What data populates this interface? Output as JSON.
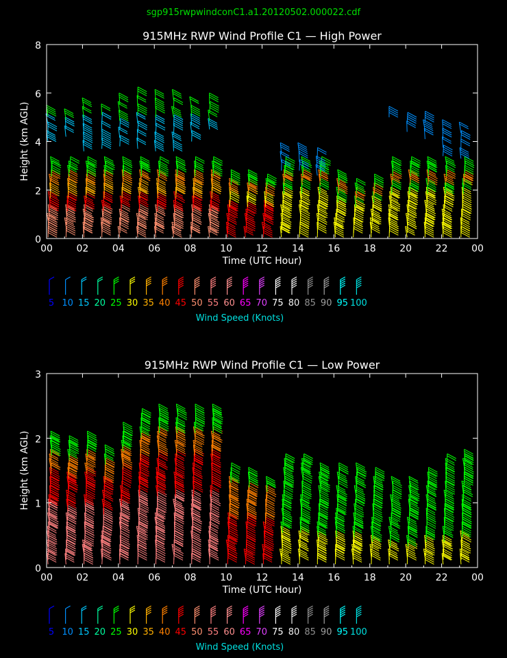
{
  "filename": "sgp915rwpwindconC1.a1.20120502.000022.cdf",
  "colors": {
    "background": "#000000",
    "axis": "#ffffff",
    "filename": "#00e000",
    "legend_title": "#00e0e0"
  },
  "legend": {
    "title": "Wind Speed (Knots)",
    "entries": [
      {
        "label": "5",
        "color": "#0000ff"
      },
      {
        "label": "10",
        "color": "#0090ff"
      },
      {
        "label": "15",
        "color": "#00c8ff"
      },
      {
        "label": "20",
        "color": "#00ffa0"
      },
      {
        "label": "25",
        "color": "#00ff00"
      },
      {
        "label": "30",
        "color": "#ffff00"
      },
      {
        "label": "35",
        "color": "#ffb000"
      },
      {
        "label": "40",
        "color": "#ff8000"
      },
      {
        "label": "45",
        "color": "#ff0000"
      },
      {
        "label": "50",
        "color": "#ff9070"
      },
      {
        "label": "55",
        "color": "#ff8080"
      },
      {
        "label": "60",
        "color": "#ff9090"
      },
      {
        "label": "65",
        "color": "#ff00ff"
      },
      {
        "label": "70",
        "color": "#e040ff"
      },
      {
        "label": "75",
        "color": "#ffffff"
      },
      {
        "label": "80",
        "color": "#f0f0f0"
      },
      {
        "label": "85",
        "color": "#909090"
      },
      {
        "label": "90",
        "color": "#a0a0a0"
      },
      {
        "label": "95",
        "color": "#00ffff"
      },
      {
        "label": "100",
        "color": "#00e0e0"
      }
    ]
  },
  "chart_data": [
    {
      "type": "scatter",
      "title": "915MHz RWP Wind Profile C1 — High Power",
      "xlabel": "Time (UTC Hour)",
      "ylabel": "Height (km AGL)",
      "xlim": [
        0,
        24
      ],
      "ylim": [
        0,
        8
      ],
      "x_ticks": [
        "00",
        "02",
        "04",
        "06",
        "08",
        "10",
        "12",
        "14",
        "16",
        "18",
        "20",
        "22",
        "00"
      ],
      "y_ticks": [
        "0",
        "2",
        "4",
        "6",
        "8"
      ],
      "columns": [
        {
          "hour": 0.0,
          "top_km": 5.2,
          "upper": [
            4.0,
            5.1
          ]
        },
        {
          "hour": 1.0,
          "top_km": 4.9,
          "upper": [
            4.2,
            5.0
          ]
        },
        {
          "hour": 2.0,
          "top_km": 5.4,
          "upper": [
            3.6,
            5.4
          ]
        },
        {
          "hour": 3.0,
          "top_km": 5.3,
          "upper": [
            3.7,
            5.3
          ]
        },
        {
          "hour": 4.0,
          "top_km": 5.5,
          "upper": [
            3.8,
            5.6
          ]
        },
        {
          "hour": 5.0,
          "top_km": 5.8,
          "upper": [
            3.7,
            5.8
          ]
        },
        {
          "hour": 6.0,
          "top_km": 5.8,
          "upper": [
            3.6,
            5.8
          ]
        },
        {
          "hour": 7.0,
          "top_km": 5.7,
          "upper": [
            3.6,
            5.7
          ]
        },
        {
          "hour": 8.0,
          "top_km": 5.6,
          "upper": [
            4.0,
            5.6
          ]
        },
        {
          "hour": 9.0,
          "top_km": 5.8,
          "upper": [
            4.5,
            5.8
          ]
        },
        {
          "hour": 10.0,
          "top_km": 2.5,
          "upper": []
        },
        {
          "hour": 11.0,
          "top_km": 2.4,
          "upper": []
        },
        {
          "hour": 12.0,
          "top_km": 2.3,
          "upper": []
        },
        {
          "hour": 13.0,
          "top_km": 3.7,
          "upper": [
            2.8,
            3.7
          ]
        },
        {
          "hour": 14.0,
          "top_km": 3.8,
          "upper": [
            2.8,
            3.8
          ]
        },
        {
          "hour": 15.0,
          "top_km": 3.6,
          "upper": [
            2.6,
            3.6
          ]
        },
        {
          "hour": 16.0,
          "top_km": 2.4,
          "upper": []
        },
        {
          "hour": 17.0,
          "top_km": 2.1,
          "upper": []
        },
        {
          "hour": 18.0,
          "top_km": 2.3,
          "upper": []
        },
        {
          "hour": 19.0,
          "top_km": 5.2,
          "upper": [
            5.0,
            5.2
          ]
        },
        {
          "hour": 20.0,
          "top_km": 4.9,
          "upper": [
            4.4,
            4.9
          ]
        },
        {
          "hour": 21.0,
          "top_km": 4.8,
          "upper": [
            4.1,
            4.8
          ]
        },
        {
          "hour": 22.0,
          "top_km": 4.7,
          "upper": [
            3.4,
            4.7
          ]
        },
        {
          "hour": 23.0,
          "top_km": 4.6,
          "upper": [
            3.3,
            4.6
          ]
        }
      ]
    },
    {
      "type": "scatter",
      "title": "915MHz RWP Wind Profile C1 — Low Power",
      "xlabel": "Time (UTC Hour)",
      "ylabel": "Height (km AGL)",
      "xlim": [
        0,
        24
      ],
      "ylim": [
        0,
        3
      ],
      "x_ticks": [
        "00",
        "02",
        "04",
        "06",
        "08",
        "10",
        "12",
        "14",
        "16",
        "18",
        "20",
        "22",
        "00"
      ],
      "y_ticks": [
        "0",
        "1",
        "2",
        "3"
      ],
      "columns": [
        {
          "hour": 0.0,
          "top_km": 2.0
        },
        {
          "hour": 1.0,
          "top_km": 1.9
        },
        {
          "hour": 2.0,
          "top_km": 2.0
        },
        {
          "hour": 3.0,
          "top_km": 1.8
        },
        {
          "hour": 4.0,
          "top_km": 2.1
        },
        {
          "hour": 5.0,
          "top_km": 2.3
        },
        {
          "hour": 6.0,
          "top_km": 2.4
        },
        {
          "hour": 7.0,
          "top_km": 2.4
        },
        {
          "hour": 8.0,
          "top_km": 2.4
        },
        {
          "hour": 9.0,
          "top_km": 2.4
        },
        {
          "hour": 10.0,
          "top_km": 1.5
        },
        {
          "hour": 11.0,
          "top_km": 1.4
        },
        {
          "hour": 12.0,
          "top_km": 1.3
        },
        {
          "hour": 13.0,
          "top_km": 1.6
        },
        {
          "hour": 14.0,
          "top_km": 1.6
        },
        {
          "hour": 15.0,
          "top_km": 1.5
        },
        {
          "hour": 16.0,
          "top_km": 1.5
        },
        {
          "hour": 17.0,
          "top_km": 1.5
        },
        {
          "hour": 18.0,
          "top_km": 1.4
        },
        {
          "hour": 19.0,
          "top_km": 1.3
        },
        {
          "hour": 20.0,
          "top_km": 1.3
        },
        {
          "hour": 21.0,
          "top_km": 1.4
        },
        {
          "hour": 22.0,
          "top_km": 1.6
        },
        {
          "hour": 23.0,
          "top_km": 1.7
        }
      ]
    }
  ]
}
